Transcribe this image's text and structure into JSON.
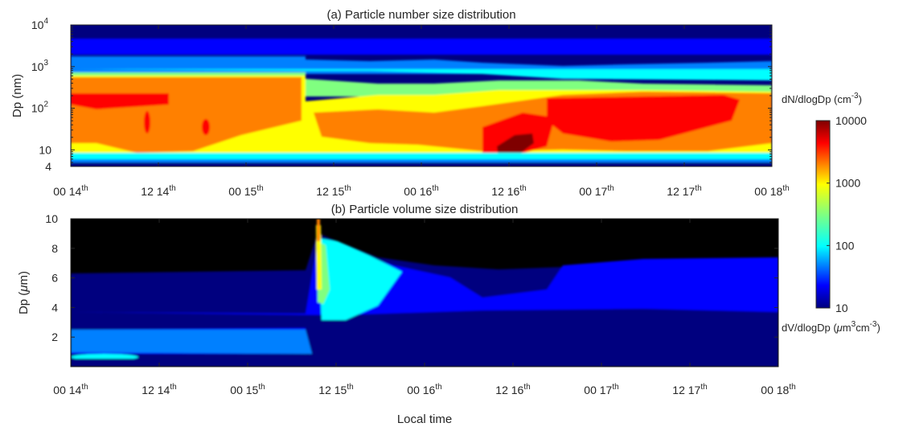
{
  "colors": {
    "colormap": [
      "#00007f",
      "#0000ff",
      "#0080ff",
      "#00ffff",
      "#80ff80",
      "#ffff00",
      "#ff8000",
      "#ff0000",
      "#7f0000"
    ],
    "background": "#ffffff"
  },
  "xlabel": "Local time",
  "chart_data": [
    {
      "type": "heatmap",
      "title": "(a) Particle number size distribution",
      "ylabel": "Dp (nm)",
      "yscale": "log",
      "ylim": [
        4,
        10000
      ],
      "yticks": [
        {
          "value": 10000,
          "label": "10",
          "exp": "4"
        },
        {
          "value": 1000,
          "label": "10",
          "exp": "3"
        },
        {
          "value": 100,
          "label": "10",
          "exp": "2"
        },
        {
          "value": 10,
          "label": "10",
          "exp": ""
        },
        {
          "value": 4,
          "label": "4",
          "exp": ""
        }
      ],
      "xticks": [
        {
          "value": 0,
          "label": "00 14",
          "sup": "th"
        },
        {
          "value": 12,
          "label": "12 14",
          "sup": "th"
        },
        {
          "value": 24,
          "label": "00 15",
          "sup": "th"
        },
        {
          "value": 36,
          "label": "12 15",
          "sup": "th"
        },
        {
          "value": 48,
          "label": "00 16",
          "sup": "th"
        },
        {
          "value": 60,
          "label": "12 16",
          "sup": "th"
        },
        {
          "value": 72,
          "label": "00 17",
          "sup": "th"
        },
        {
          "value": 84,
          "label": "12 17",
          "sup": "th"
        },
        {
          "value": 96,
          "label": "00 18",
          "sup": "th"
        }
      ],
      "colorbar": {
        "label": "dN/dlogDp (cm",
        "label_exp": "-3",
        "label_end": ")",
        "scale": "log",
        "range": [
          10,
          10000
        ],
        "ticks": [
          {
            "value": 10000,
            "label": "10000"
          },
          {
            "value": 1000,
            "label": "1000"
          },
          {
            "value": 100,
            "label": "100"
          },
          {
            "value": 10,
            "label": "10"
          }
        ]
      }
    },
    {
      "type": "heatmap",
      "title": "(b) Particle volume size distribution",
      "ylabel": "Dp (",
      "ylabel_greek": "μ",
      "ylabel_end": "m)",
      "yscale": "linear",
      "ylim": [
        0,
        10
      ],
      "yticks": [
        {
          "value": 10,
          "label": "10"
        },
        {
          "value": 8,
          "label": "8"
        },
        {
          "value": 6,
          "label": "6"
        },
        {
          "value": 4,
          "label": "4"
        },
        {
          "value": 2,
          "label": "2"
        }
      ],
      "xticks": [
        {
          "value": 0,
          "label": "00 14",
          "sup": "th"
        },
        {
          "value": 12,
          "label": "12 14",
          "sup": "th"
        },
        {
          "value": 24,
          "label": "00 15",
          "sup": "th"
        },
        {
          "value": 36,
          "label": "12 15",
          "sup": "th"
        },
        {
          "value": 48,
          "label": "00 16",
          "sup": "th"
        },
        {
          "value": 60,
          "label": "12 16",
          "sup": "th"
        },
        {
          "value": 72,
          "label": "00 17",
          "sup": "th"
        },
        {
          "value": 84,
          "label": "12 17",
          "sup": "th"
        },
        {
          "value": 96,
          "label": "00 18",
          "sup": "th"
        }
      ],
      "colorbar_label": {
        "p1": "dV/dlogDp (",
        "greek": "μ",
        "p2": "m",
        "exp1": "3",
        "p3": "cm",
        "exp2": "-3",
        "p4": ")"
      }
    }
  ]
}
